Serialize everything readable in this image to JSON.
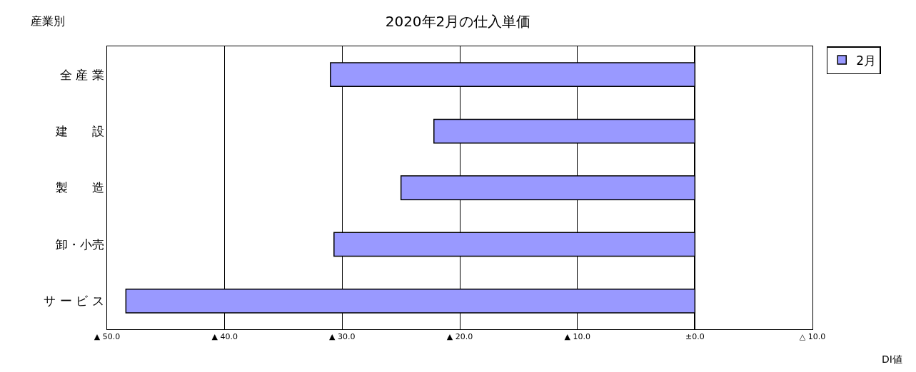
{
  "chart_data": {
    "type": "bar",
    "orientation": "horizontal",
    "title": "2020年2月の仕入単価",
    "ylabel": "産業別",
    "annotations": [
      "DI値"
    ],
    "categories": [
      "全 産 業",
      "建　　設",
      "製　　造",
      "卸・小売",
      "サ ー ビ ス"
    ],
    "series": [
      {
        "name": "2月",
        "color": "#9999ff",
        "values": [
          -31.0,
          -22.2,
          -25.0,
          -30.7,
          -48.4
        ]
      }
    ],
    "xlim": [
      -50,
      10
    ],
    "xticks": [
      {
        "value": -50,
        "label": "▲ 50.0"
      },
      {
        "value": -40,
        "label": "▲ 40.0"
      },
      {
        "value": -30,
        "label": "▲ 30.0"
      },
      {
        "value": -20,
        "label": "▲ 20.0"
      },
      {
        "value": -10,
        "label": "▲ 10.0"
      },
      {
        "value": 0,
        "label": "±0.0"
      },
      {
        "value": 10,
        "label": "△ 10.0"
      }
    ],
    "grid": "x",
    "legend": "top right"
  }
}
